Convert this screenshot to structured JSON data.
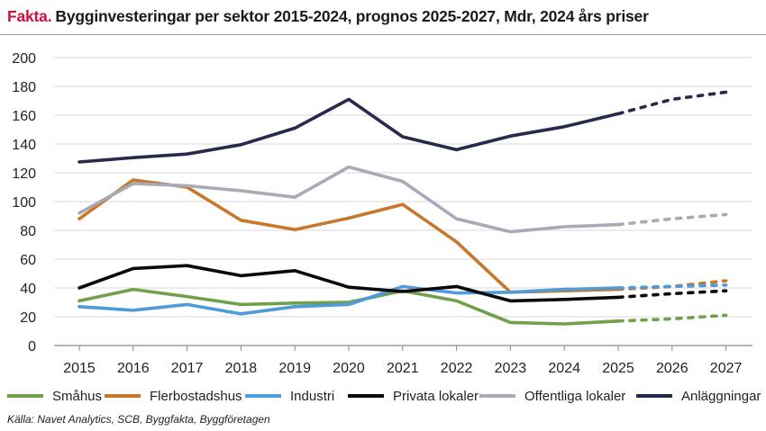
{
  "header": {
    "tag": "Fakta.",
    "title": "Bygginvesteringar per sektor 2015-2024, prognos 2025-2027, Mdr, 2024 års priser"
  },
  "source": "Källa: Navet Analytics, SCB, Byggfakta, Byggföretagen",
  "chart_data": {
    "type": "line",
    "title": "Bygginvesteringar per sektor 2015-2024, prognos 2025-2027, Mdr, 2024 års priser",
    "x": [
      "2015",
      "2016",
      "2017",
      "2018",
      "2019",
      "2020",
      "2021",
      "2022",
      "2023",
      "2024",
      "2025",
      "2026",
      "2027"
    ],
    "ylim": [
      0,
      200
    ],
    "yticks": [
      "0",
      "20",
      "40",
      "60",
      "80",
      "100",
      "120",
      "140",
      "160",
      "180",
      "200"
    ],
    "grid": true,
    "legend_position": "bottom",
    "forecast_from": "2025",
    "series": [
      {
        "name": "Småhus",
        "color": "#70a04a",
        "values": [
          31,
          39,
          34,
          28.5,
          29.5,
          30,
          38,
          31,
          16,
          15,
          17,
          18.5,
          21
        ]
      },
      {
        "name": "Flerbostadshus",
        "color": "#c7782b",
        "values": [
          88,
          115,
          110,
          87,
          80.5,
          88.5,
          98,
          72,
          37,
          38,
          39,
          41,
          45
        ]
      },
      {
        "name": "Industri",
        "color": "#4f9ad8",
        "values": [
          27,
          24.5,
          28.5,
          22,
          27,
          28.5,
          41,
          36.5,
          37,
          39,
          40,
          41,
          42
        ]
      },
      {
        "name": "Privata lokaler",
        "color": "#0a0a0a",
        "values": [
          40,
          53.5,
          55.5,
          48.5,
          52,
          40.5,
          37.5,
          41,
          31,
          32,
          33.5,
          36,
          38
        ]
      },
      {
        "name": "Offentliga lokaler",
        "color": "#a9a9b7",
        "values": [
          92,
          112.5,
          111,
          107.5,
          103,
          124,
          114,
          88,
          79,
          82.5,
          84,
          88,
          91
        ]
      },
      {
        "name": "Anläggningar",
        "color": "#272a4c",
        "values": [
          127.5,
          130.5,
          133,
          139.5,
          151,
          171,
          145,
          136,
          145.5,
          152,
          161,
          171,
          176
        ]
      }
    ]
  }
}
